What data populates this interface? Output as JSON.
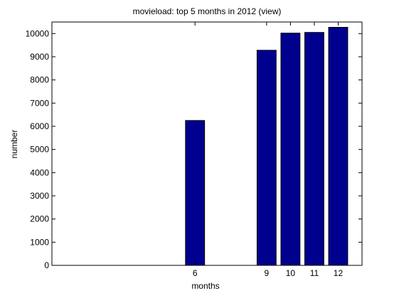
{
  "chart_data": {
    "type": "bar",
    "title": "movieload: top 5 months in 2012 (view)",
    "xlabel": "months",
    "ylabel": "number",
    "x": [
      6,
      9,
      10,
      11,
      12
    ],
    "values": [
      6250,
      9280,
      10020,
      10050,
      10270
    ],
    "xlim": [
      0,
      13
    ],
    "ylim": [
      0,
      10500
    ],
    "xticks": [
      6,
      9,
      10,
      11,
      12
    ],
    "yticks": [
      0,
      1000,
      2000,
      3000,
      4000,
      5000,
      6000,
      7000,
      8000,
      9000,
      10000
    ],
    "grid": false,
    "legend": "none",
    "bar_color": "#00008f"
  }
}
